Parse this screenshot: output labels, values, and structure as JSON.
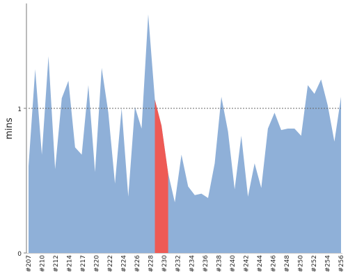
{
  "chart_data": {
    "type": "area",
    "ylabel": "mins",
    "ylim": [
      0,
      1.72
    ],
    "y_ticks": [
      0,
      1
    ],
    "reference_line": 1,
    "x_tick_labels": [
      "#207",
      "#210",
      "#212",
      "#214",
      "#217",
      "#220",
      "#222",
      "#224",
      "#226",
      "#228",
      "#230",
      "#232",
      "#234",
      "#236",
      "#238",
      "#240",
      "#242",
      "#244",
      "#246",
      "#248",
      "#250",
      "#252",
      "#254",
      "#256"
    ],
    "values": [
      0.6,
      1.27,
      0.68,
      1.36,
      0.58,
      1.07,
      1.19,
      0.73,
      0.68,
      1.16,
      0.56,
      1.28,
      0.97,
      0.48,
      1.0,
      0.39,
      1.01,
      0.86,
      1.65,
      1.06,
      0.88,
      0.55,
      0.35,
      0.68,
      0.46,
      0.4,
      0.41,
      0.38,
      0.62,
      1.08,
      0.84,
      0.44,
      0.81,
      0.39,
      0.62,
      0.45,
      0.86,
      0.97,
      0.85,
      0.86,
      0.86,
      0.81,
      1.16,
      1.1,
      1.2,
      1.02,
      0.77,
      1.08
    ],
    "highlight": {
      "start_index": 19,
      "end_index": 21,
      "color": "#ee5a55"
    },
    "colors": {
      "area": "#8fb0d8",
      "axis": "#777777",
      "refline": "#666666"
    }
  }
}
